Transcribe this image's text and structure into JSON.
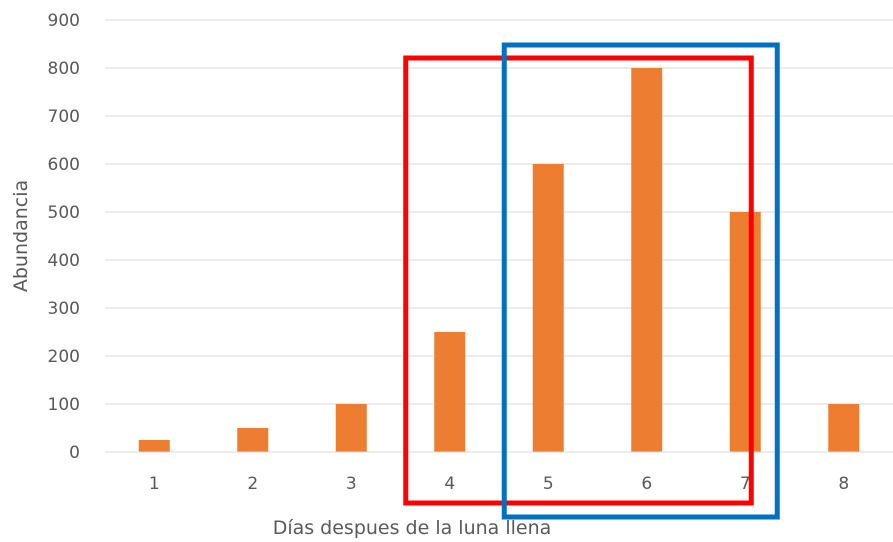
{
  "chart_data": {
    "type": "bar",
    "categories": [
      "1",
      "2",
      "3",
      "4",
      "5",
      "6",
      "7",
      "8"
    ],
    "values": [
      25,
      50,
      100,
      250,
      600,
      800,
      500,
      100
    ],
    "xlabel": "Días despues de la luna llena",
    "ylabel": "Abundancia",
    "ylim": [
      0,
      900
    ],
    "yticks": [
      0,
      100,
      200,
      300,
      400,
      500,
      600,
      700,
      800,
      900
    ],
    "grid": true,
    "colors": {
      "bar": "#ED7D31",
      "grid": "#D9D9D9",
      "text": "#595959"
    },
    "highlights": [
      {
        "categories": [
          "4",
          "5",
          "6",
          "7"
        ],
        "color": "#FF0000"
      },
      {
        "categories": [
          "5",
          "6",
          "7"
        ],
        "color": "#0070C0"
      }
    ]
  }
}
